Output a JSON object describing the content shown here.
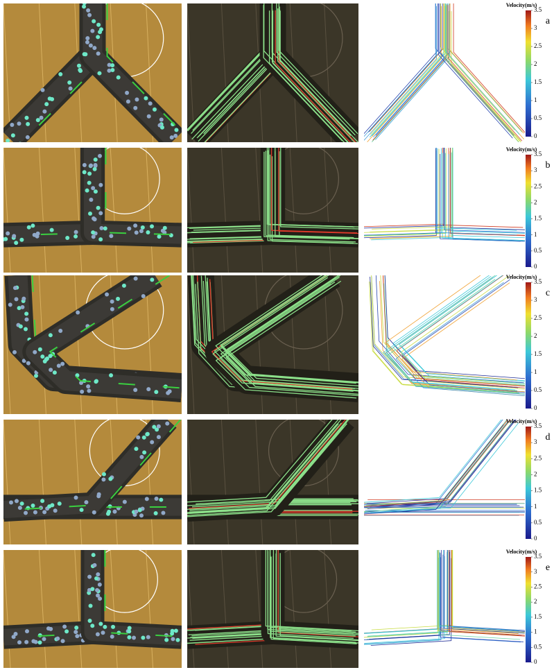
{
  "rows": [
    {
      "label": "a",
      "colorbar": {
        "title": "Velocity(m/s)",
        "ticks": [
          0,
          0.5,
          1,
          1.5,
          2,
          2.5,
          3,
          3.5
        ]
      }
    },
    {
      "label": "b",
      "colorbar": {
        "title": "Velocity(m/s)",
        "ticks": [
          0,
          0.5,
          1,
          1.5,
          2,
          2.5,
          3,
          3.5
        ]
      }
    },
    {
      "label": "c",
      "colorbar": {
        "title": "Velocity(m/s)",
        "ticks": [
          0,
          0.5,
          1,
          1.5,
          2,
          2.5,
          3,
          3.5
        ]
      }
    },
    {
      "label": "d",
      "colorbar": {
        "title": "Velocity(m/s)",
        "ticks": [
          0,
          0.5,
          1,
          1.5,
          2,
          2.5,
          3,
          3.5
        ]
      }
    },
    {
      "label": "e",
      "colorbar": {
        "title": "Velocity(m/s)",
        "ticks": [
          0,
          0.5,
          1,
          1.5,
          2,
          2.5,
          3,
          3.5
        ]
      }
    }
  ]
}
